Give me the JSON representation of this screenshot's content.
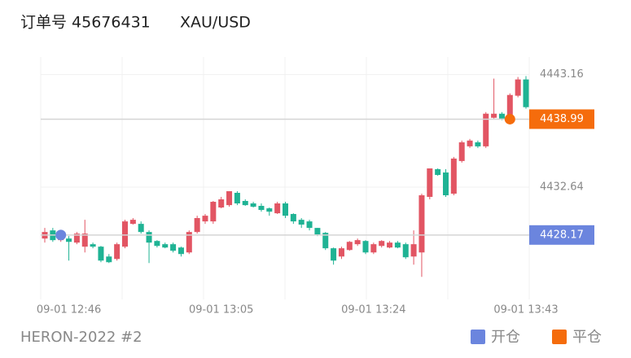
{
  "chart_data": {
    "type": "candlestick",
    "title": "订单号 45676431",
    "symbol": "XAU/USD",
    "footer": "HERON-2022 #2",
    "categories": [
      null,
      null,
      null,
      "09-01 12:46",
      null,
      null,
      null,
      null,
      null,
      null,
      null,
      null,
      null,
      null,
      null,
      null,
      null,
      null,
      null,
      null,
      null,
      null,
      "09-01 13:05",
      null,
      null,
      null,
      null,
      null,
      null,
      null,
      null,
      null,
      null,
      null,
      null,
      null,
      null,
      null,
      null,
      null,
      null,
      "09-01 13:24",
      null,
      null,
      null,
      null,
      null,
      null,
      null,
      null,
      null,
      null,
      null,
      null,
      null,
      null,
      null,
      null,
      null,
      null,
      "09-01 13:43"
    ],
    "open": [
      4427.84,
      4428.6,
      4427.69,
      4427.84,
      4427.46,
      4427.08,
      4427.31,
      4427.08,
      4426.16,
      4425.93,
      4427.08,
      4429.21,
      4429.21,
      4428.45,
      4427.61,
      4427.31,
      4427.31,
      4427.0,
      4426.54,
      4428.45,
      4429.44,
      4429.44,
      4430.74,
      4430.96,
      4432.11,
      4431.35,
      4431.12,
      4430.89,
      4430.66,
      4430.2,
      4431.12,
      4430.13,
      4429.59,
      4429.44,
      4428.83,
      4428.37,
      4426.93,
      4426.16,
      4426.77,
      4427.31,
      4427.61,
      4426.54,
      4427.15,
      4427.0,
      4427.46,
      4427.31,
      4426.16,
      4426.54,
      4431.73,
      4434.32,
      4434.01,
      4432.03,
      4435.08,
      4436.45,
      4436.83,
      4436.45,
      4439.12,
      4439.5,
      4439.12,
      4441.18,
      4442.7
    ],
    "high": [
      4428.83,
      4428.83,
      4428.3,
      4428.07,
      4428.45,
      4429.59,
      4427.46,
      4427.15,
      4426.39,
      4427.46,
      4429.59,
      4429.75,
      4429.44,
      4428.6,
      4427.69,
      4427.46,
      4427.46,
      4427.08,
      4428.6,
      4429.97,
      4430.13,
      4431.35,
      4431.73,
      4432.26,
      4432.26,
      4431.5,
      4431.27,
      4431.12,
      4430.74,
      4431.27,
      4431.27,
      4430.2,
      4429.75,
      4429.59,
      4428.83,
      4428.45,
      4427.0,
      4427.08,
      4427.61,
      4427.84,
      4427.69,
      4427.46,
      4427.69,
      4427.61,
      4427.61,
      4427.46,
      4428.6,
      4432.03,
      4434.39,
      4434.39,
      4434.32,
      4435.46,
      4436.99,
      4437.14,
      4436.99,
      4439.65,
      4442.78,
      4439.65,
      4441.4,
      4442.93,
      4443.01
    ],
    "low": [
      4427.46,
      4427.53,
      4427.53,
      4425.78,
      4427.31,
      4426.54,
      4426.93,
      4425.63,
      4425.55,
      4425.78,
      4426.93,
      4429.14,
      4428.3,
      4425.55,
      4427.0,
      4426.93,
      4426.54,
      4426.16,
      4426.39,
      4428.3,
      4429.21,
      4429.21,
      4430.66,
      4430.81,
      4430.96,
      4430.89,
      4430.74,
      4430.35,
      4429.97,
      4430.13,
      4429.75,
      4429.21,
      4428.83,
      4428.6,
      4428.07,
      4426.77,
      4425.4,
      4425.93,
      4426.7,
      4427.15,
      4426.39,
      4426.39,
      4427.0,
      4426.93,
      4426.93,
      4425.93,
      4425.4,
      4424.26,
      4431.5,
      4433.7,
      4431.73,
      4431.88,
      4434.93,
      4436.3,
      4436.3,
      4436.3,
      4439.04,
      4438.89,
      4438.96,
      4441.03,
      4439.96
    ],
    "close": [
      4428.45,
      4427.69,
      4428.07,
      4427.53,
      4428.3,
      4428.3,
      4427.08,
      4425.78,
      4425.63,
      4427.31,
      4429.44,
      4429.59,
      4428.45,
      4427.46,
      4427.15,
      4427.0,
      4426.7,
      4426.39,
      4428.45,
      4429.75,
      4429.97,
      4431.27,
      4431.5,
      4432.26,
      4431.12,
      4430.96,
      4430.81,
      4430.51,
      4430.35,
      4431.12,
      4429.97,
      4429.44,
      4429.14,
      4428.83,
      4428.22,
      4426.93,
      4425.78,
      4426.93,
      4427.53,
      4427.69,
      4426.54,
      4427.31,
      4427.61,
      4427.46,
      4427.0,
      4426.09,
      4427.31,
      4431.88,
      4434.39,
      4433.78,
      4431.88,
      4435.31,
      4436.83,
      4436.99,
      4436.45,
      4439.5,
      4439.5,
      4439.04,
      4441.25,
      4442.7,
      4440.11
    ],
    "up_color": "#e25563",
    "down_color": "#1fb394",
    "ylim": [
      4422,
      4444.8
    ],
    "yticks": [
      4443.16,
      4432.64
    ],
    "markers": [
      {
        "name": "开仓",
        "color": "#6b85de",
        "value": 4428.17,
        "index": 2
      },
      {
        "name": "平仓",
        "color": "#f56c0c",
        "value": 4438.99,
        "index": 58
      }
    ]
  }
}
